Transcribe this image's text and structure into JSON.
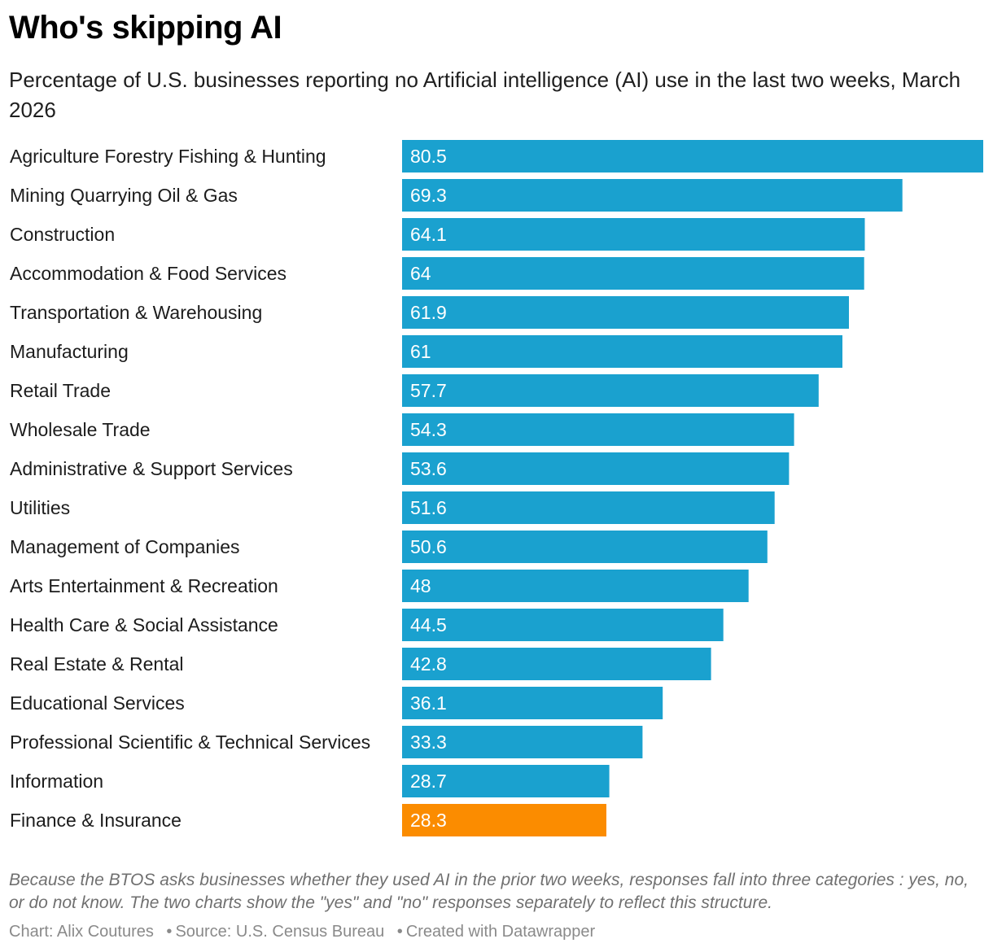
{
  "header": {
    "title": "Who's skipping AI",
    "subtitle": "Percentage of U.S. businesses reporting no Artificial intelligence (AI) use in the last two weeks, March 2026"
  },
  "notes": "Because the BTOS asks businesses whether they used AI in the prior two weeks, responses fall into three categories : yes, no, or do not know. The two charts show the \"yes\" and \"no\" responses separately to reflect this structure.",
  "footer": {
    "chart_credit": "Chart: Alix Coutures",
    "source": "Source: U.S. Census Bureau",
    "created_with": "Created with Datawrapper",
    "separator": "•"
  },
  "colors": {
    "bar": "#1aa1cf",
    "highlight": "#fb8c00",
    "label_text": "#ffffff"
  },
  "chart_data": {
    "type": "bar",
    "orientation": "horizontal",
    "categories": [
      "Agriculture Forestry Fishing & Hunting",
      "Mining Quarrying Oil & Gas",
      "Construction",
      "Accommodation & Food Services",
      "Transportation & Warehousing",
      "Manufacturing",
      "Retail Trade",
      "Wholesale Trade",
      "Administrative & Support Services",
      "Utilities",
      "Management of Companies",
      "Arts Entertainment & Recreation",
      "Health Care & Social Assistance",
      "Real Estate & Rental",
      "Educational Services",
      "Professional Scientific & Technical Services",
      "Information",
      "Finance & Insurance"
    ],
    "values": [
      80.5,
      69.3,
      64.1,
      64,
      61.9,
      61,
      57.7,
      54.3,
      53.6,
      51.6,
      50.6,
      48,
      44.5,
      42.8,
      36.1,
      33.3,
      28.7,
      28.3
    ],
    "value_labels": [
      "80.5",
      "69.3",
      "64.1",
      "64",
      "61.9",
      "61",
      "57.7",
      "54.3",
      "53.6",
      "51.6",
      "50.6",
      "48",
      "44.5",
      "42.8",
      "36.1",
      "33.3",
      "28.7",
      "28.3"
    ],
    "highlight_category": "Finance & Insurance",
    "xlim": [
      0,
      80.5
    ],
    "grid": false,
    "legend": "none"
  }
}
